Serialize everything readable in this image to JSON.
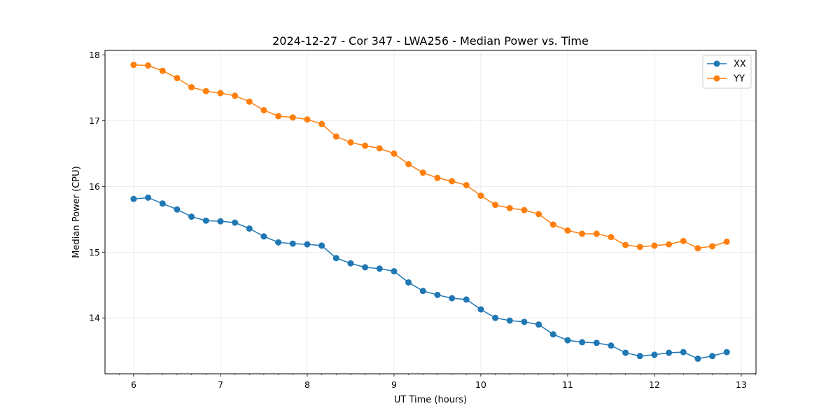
{
  "chart_data": {
    "type": "line",
    "title": "2024-12-27 - Cor 347 - LWA256 - Median Power vs. Time",
    "xlabel": "UT Time (hours)",
    "ylabel": "Median Power (CPU)",
    "xlim": [
      5.67,
      13.17
    ],
    "ylim": [
      13.15,
      18.07
    ],
    "xticks": [
      6,
      7,
      8,
      9,
      10,
      11,
      12,
      13
    ],
    "xtick_labels": [
      "6",
      "7",
      "8",
      "9",
      "10",
      "11",
      "12",
      "13"
    ],
    "yticks": [
      14,
      15,
      16,
      17,
      18
    ],
    "ytick_labels": [
      "14",
      "15",
      "16",
      "17",
      "18"
    ],
    "grid": true,
    "legend_position": "top-right",
    "x": [
      6.0,
      6.1667,
      6.3333,
      6.5,
      6.6667,
      6.8333,
      7.0,
      7.1667,
      7.3333,
      7.5,
      7.6667,
      7.8333,
      8.0,
      8.1667,
      8.3333,
      8.5,
      8.6667,
      8.8333,
      9.0,
      9.1667,
      9.3333,
      9.5,
      9.6667,
      9.8333,
      10.0,
      10.1667,
      10.3333,
      10.5,
      10.6667,
      10.8333,
      11.0,
      11.1667,
      11.3333,
      11.5,
      11.6667,
      11.8333,
      12.0,
      12.1667,
      12.3333,
      12.5,
      12.6667,
      12.8333
    ],
    "series": [
      {
        "name": "XX",
        "color": "#1f77b4",
        "values": [
          15.81,
          15.83,
          15.74,
          15.65,
          15.54,
          15.48,
          15.47,
          15.45,
          15.36,
          15.24,
          15.15,
          15.13,
          15.12,
          15.1,
          14.91,
          14.83,
          14.77,
          14.75,
          14.71,
          14.54,
          14.41,
          14.35,
          14.3,
          14.28,
          14.13,
          14.0,
          13.96,
          13.94,
          13.9,
          13.75,
          13.66,
          13.63,
          13.62,
          13.58,
          13.47,
          13.42,
          13.44,
          13.47,
          13.48,
          13.38,
          13.42,
          13.48
        ]
      },
      {
        "name": "YY",
        "color": "#ff7f0e",
        "values": [
          17.85,
          17.84,
          17.76,
          17.65,
          17.51,
          17.45,
          17.42,
          17.38,
          17.29,
          17.16,
          17.07,
          17.05,
          17.02,
          16.95,
          16.76,
          16.67,
          16.62,
          16.58,
          16.5,
          16.34,
          16.21,
          16.13,
          16.08,
          16.02,
          15.86,
          15.72,
          15.67,
          15.64,
          15.58,
          15.42,
          15.33,
          15.28,
          15.28,
          15.23,
          15.11,
          15.08,
          15.1,
          15.12,
          15.17,
          15.06,
          15.09,
          15.16
        ]
      }
    ]
  }
}
